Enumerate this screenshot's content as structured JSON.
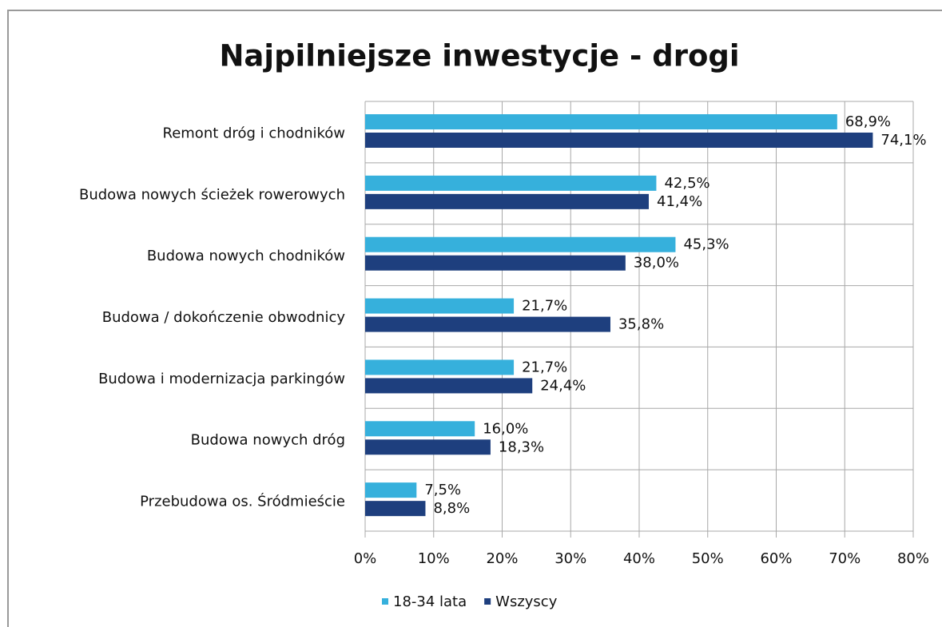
{
  "chart_data": {
    "type": "bar",
    "orientation": "horizontal",
    "title": "Najpilniejsze inwestycje - drogi",
    "categories": [
      "Remont dróg i chodników",
      "Budowa nowych ścieżek rowerowych",
      "Budowa nowych chodników",
      "Budowa / dokończenie obwodnicy",
      "Budowa i modernizacja parkingów",
      "Budowa nowych dróg",
      "Przebudowa os. Śródmieście"
    ],
    "series": [
      {
        "name": "18-34 lata",
        "color": "#36b0dc",
        "values": [
          68.9,
          42.5,
          45.3,
          21.7,
          21.7,
          16.0,
          7.5
        ],
        "value_labels": [
          "68,9%",
          "42,5%",
          "45,3%",
          "21,7%",
          "21,7%",
          "16,0%",
          "7,5%"
        ]
      },
      {
        "name": "Wszyscy",
        "color": "#1e3f7e",
        "values": [
          74.1,
          41.4,
          38.0,
          35.8,
          24.4,
          18.3,
          8.8
        ],
        "value_labels": [
          "74,1%",
          "41,4%",
          "38,0%",
          "35,8%",
          "24,4%",
          "18,3%",
          "8,8%"
        ]
      }
    ],
    "xlim": [
      0,
      80
    ],
    "xticks": [
      {
        "value": 0,
        "label": "0%"
      },
      {
        "value": 10,
        "label": "10%"
      },
      {
        "value": 20,
        "label": "20%"
      },
      {
        "value": 30,
        "label": "30%"
      },
      {
        "value": 40,
        "label": "40%"
      },
      {
        "value": 50,
        "label": "50%"
      },
      {
        "value": 60,
        "label": "60%"
      },
      {
        "value": 70,
        "label": "70%"
      },
      {
        "value": 80,
        "label": "80%"
      }
    ],
    "grid": true,
    "legend": "bottom"
  }
}
